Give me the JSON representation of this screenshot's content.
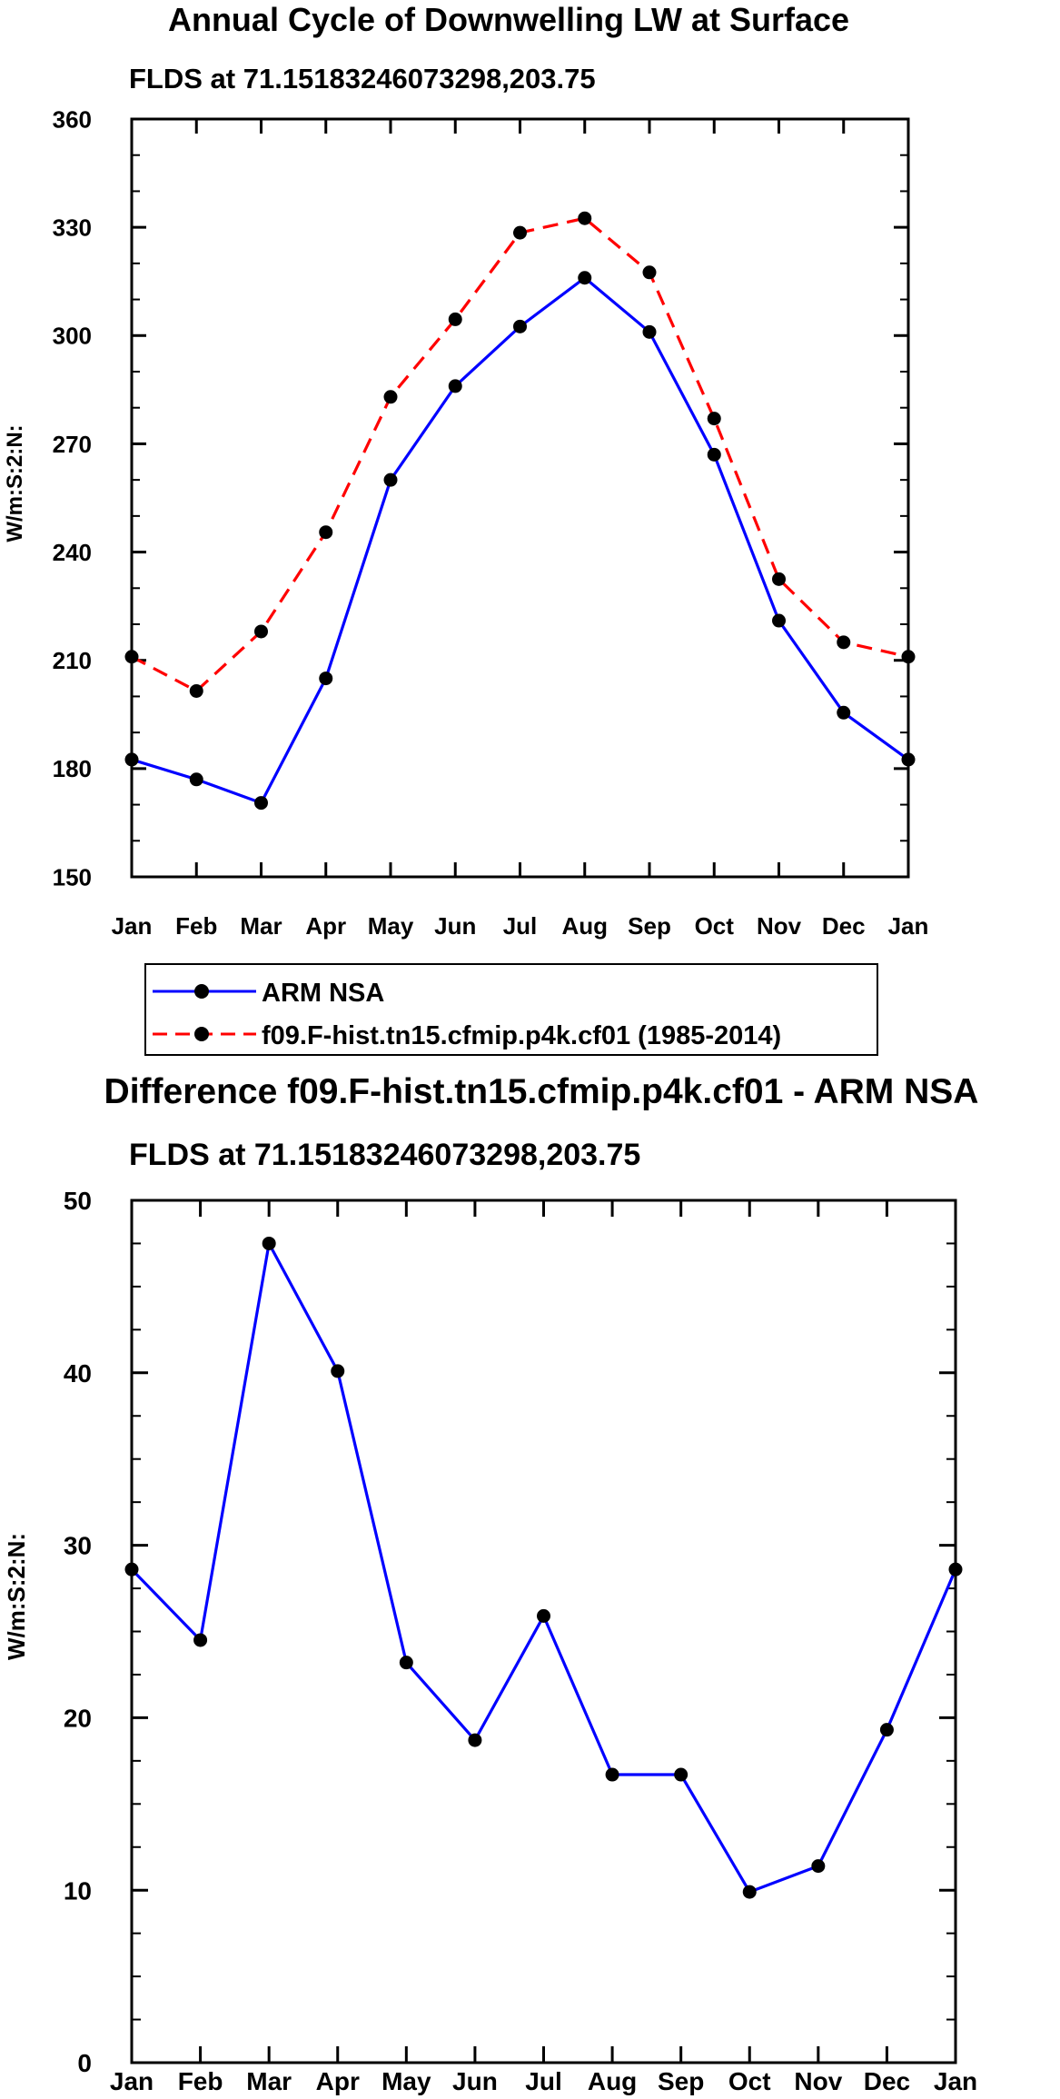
{
  "chart_data": [
    {
      "type": "line",
      "title": "Annual Cycle of Downwelling LW at Surface",
      "subtitle": "FLDS at 71.15183246073298,203.75",
      "xlabel": "",
      "ylabel": "W/m:S:2:N:",
      "categories": [
        "Jan",
        "Feb",
        "Mar",
        "Apr",
        "May",
        "Jun",
        "Jul",
        "Aug",
        "Sep",
        "Oct",
        "Nov",
        "Dec",
        "Jan"
      ],
      "ylim": [
        150,
        360
      ],
      "yticks": [
        150,
        180,
        210,
        240,
        270,
        300,
        330,
        360
      ],
      "series": [
        {
          "name": "ARM NSA",
          "color": "#0000ff",
          "dash": "solid",
          "values": [
            182.5,
            177,
            170.5,
            205,
            260,
            286,
            302.5,
            316,
            301,
            267,
            221,
            195.5,
            182.5
          ]
        },
        {
          "name": "f09.F-hist.tn15.cfmip.p4k.cf01 (1985-2014)",
          "color": "#ff0000",
          "dash": "dashed",
          "values": [
            211,
            201.5,
            218,
            245.5,
            283,
            304.5,
            328.5,
            332.5,
            317.5,
            277,
            232.5,
            215,
            211
          ]
        }
      ],
      "legend": "bottom"
    },
    {
      "type": "line",
      "title": "Difference f09.F-hist.tn15.cfmip.p4k.cf01 - ARM NSA",
      "subtitle": "FLDS at 71.15183246073298,203.75",
      "xlabel": "",
      "ylabel": "W/m:S:2:N:",
      "categories": [
        "Jan",
        "Feb",
        "Mar",
        "Apr",
        "May",
        "Jun",
        "Jul",
        "Aug",
        "Sep",
        "Oct",
        "Nov",
        "Dec",
        "Jan"
      ],
      "ylim": [
        0,
        50
      ],
      "yticks": [
        0,
        10,
        20,
        30,
        40,
        50
      ],
      "series": [
        {
          "name": "Difference",
          "color": "#0000ff",
          "dash": "solid",
          "values": [
            28.6,
            24.5,
            47.5,
            40.1,
            23.2,
            18.7,
            25.9,
            16.7,
            16.7,
            9.9,
            11.4,
            19.3,
            28.6
          ]
        }
      ]
    }
  ]
}
